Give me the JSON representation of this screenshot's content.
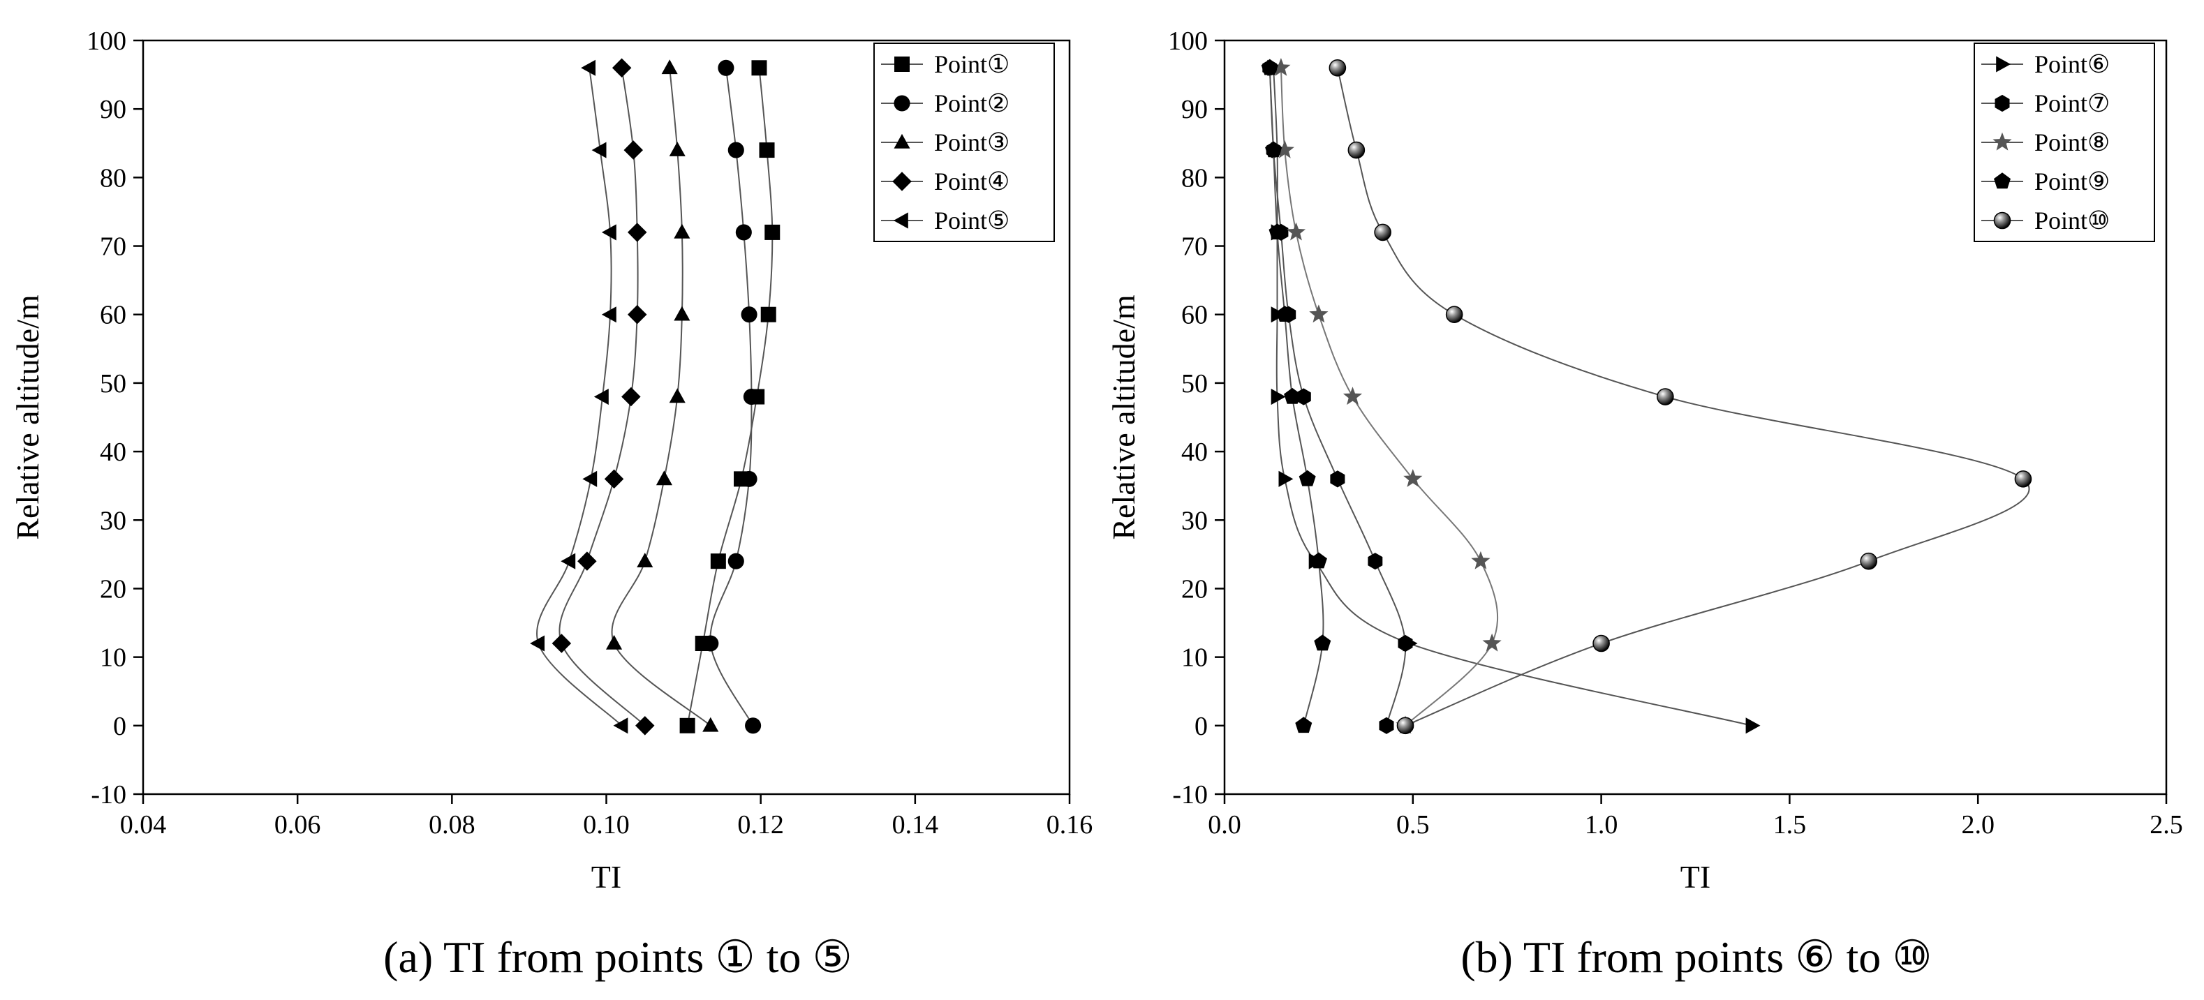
{
  "figure": {
    "caption_a": "(a) TI from points ① to ⑤",
    "caption_b": "(b) TI from points ⑥ to ⑩"
  },
  "chart_data": [
    {
      "id": "a",
      "type": "line",
      "xlabel": "TI",
      "ylabel": "Relative altitude/m",
      "xlim": [
        0.04,
        0.16
      ],
      "ylim": [
        -10,
        100
      ],
      "xticks": [
        "0.04",
        "0.06",
        "0.08",
        "0.10",
        "0.12",
        "0.14",
        "0.16"
      ],
      "xtick_values": [
        0.04,
        0.06,
        0.08,
        0.1,
        0.12,
        0.14,
        0.16
      ],
      "yticks": [
        "-10",
        "0",
        "10",
        "20",
        "30",
        "40",
        "50",
        "60",
        "70",
        "80",
        "90",
        "100"
      ],
      "ytick_values": [
        -10,
        0,
        10,
        20,
        30,
        40,
        50,
        60,
        70,
        80,
        90,
        100
      ],
      "legend_position": "top-right",
      "y": [
        0,
        12,
        24,
        36,
        48,
        60,
        72,
        84,
        96
      ],
      "series": [
        {
          "name": "Point①",
          "marker": "square",
          "color": "#000000",
          "x": [
            0.1105,
            0.1125,
            0.1145,
            0.1175,
            0.1195,
            0.121,
            0.1215,
            0.1208,
            0.1198
          ]
        },
        {
          "name": "Point②",
          "marker": "circle",
          "color": "#000000",
          "x": [
            0.119,
            0.1135,
            0.1168,
            0.1185,
            0.1188,
            0.1185,
            0.1178,
            0.1168,
            0.1155
          ]
        },
        {
          "name": "Point③",
          "marker": "triangle-up",
          "color": "#000000",
          "x": [
            0.1135,
            0.101,
            0.105,
            0.1075,
            0.1092,
            0.1098,
            0.1098,
            0.1092,
            0.1082
          ]
        },
        {
          "name": "Point④",
          "marker": "diamond",
          "color": "#000000",
          "x": [
            0.105,
            0.0942,
            0.0975,
            0.101,
            0.1032,
            0.104,
            0.104,
            0.1035,
            0.102
          ]
        },
        {
          "name": "Point⑤",
          "marker": "triangle-left",
          "color": "#000000",
          "x": [
            0.102,
            0.0912,
            0.0952,
            0.098,
            0.0995,
            0.1005,
            0.1005,
            0.0992,
            0.0978
          ]
        }
      ]
    },
    {
      "id": "b",
      "type": "line",
      "xlabel": "TI",
      "ylabel": "Relative altitude/m",
      "xlim": [
        0.0,
        2.5
      ],
      "ylim": [
        -10,
        100
      ],
      "xticks": [
        "0.0",
        "0.5",
        "1.0",
        "1.5",
        "2.0",
        "2.5"
      ],
      "xtick_values": [
        0.0,
        0.5,
        1.0,
        1.5,
        2.0,
        2.5
      ],
      "yticks": [
        "-10",
        "0",
        "10",
        "20",
        "30",
        "40",
        "50",
        "60",
        "70",
        "80",
        "90",
        "100"
      ],
      "ytick_values": [
        -10,
        0,
        10,
        20,
        30,
        40,
        50,
        60,
        70,
        80,
        90,
        100
      ],
      "legend_position": "top-right",
      "y": [
        0,
        12,
        24,
        36,
        48,
        60,
        72,
        84,
        96
      ],
      "series": [
        {
          "name": "Point⑥",
          "marker": "triangle-right",
          "color": "#000000",
          "x": [
            1.4,
            0.49,
            0.24,
            0.16,
            0.14,
            0.14,
            0.14,
            0.14,
            0.13
          ]
        },
        {
          "name": "Point⑦",
          "marker": "hexagon",
          "color": "#000000",
          "x": [
            0.43,
            0.48,
            0.4,
            0.3,
            0.21,
            0.17,
            0.15,
            0.13,
            0.12
          ]
        },
        {
          "name": "Point⑧",
          "marker": "star",
          "color": "#555555",
          "x": [
            0.48,
            0.71,
            0.68,
            0.5,
            0.34,
            0.25,
            0.19,
            0.16,
            0.15
          ]
        },
        {
          "name": "Point⑨",
          "marker": "pentagon",
          "color": "#000000",
          "x": [
            0.21,
            0.26,
            0.25,
            0.22,
            0.18,
            0.16,
            0.14,
            0.13,
            0.12
          ]
        },
        {
          "name": "Point⑩",
          "marker": "sphere",
          "color": "#000000",
          "x": [
            0.48,
            1.0,
            1.71,
            2.12,
            1.17,
            0.61,
            0.42,
            0.35,
            0.3
          ]
        }
      ]
    }
  ]
}
